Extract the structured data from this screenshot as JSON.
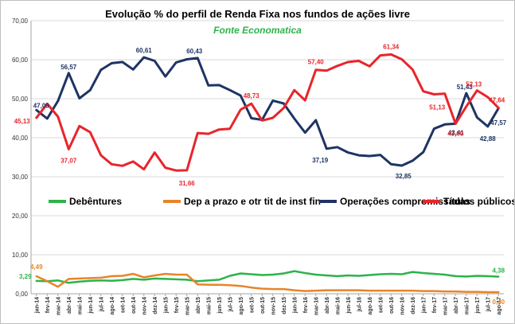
{
  "chart_data": {
    "type": "line",
    "title": "Evolução % do perfil de Renda Fixa nos fundos de ações livre",
    "subtitle": "Fonte Economatica",
    "ylim": [
      0,
      70
    ],
    "yticks": [
      "0,00",
      "10,00",
      "20,00",
      "30,00",
      "40,00",
      "50,00",
      "60,00",
      "70,00"
    ],
    "grid": true,
    "legend_position": "middle",
    "categories": [
      "jan-14",
      "fev-14",
      "mar-14",
      "abr-14",
      "mai-14",
      "jun-14",
      "jul-14",
      "ago-14",
      "set-14",
      "out-14",
      "nov-14",
      "dez-14",
      "jan-15",
      "fev-15",
      "mar-15",
      "abr-15",
      "mai-15",
      "jun-15",
      "jul-15",
      "ago-15",
      "set-15",
      "out-15",
      "nov-15",
      "dez-15",
      "jan-16",
      "fev-16",
      "mar-16",
      "abr-16",
      "mai-16",
      "jun-16",
      "jul-16",
      "ago-16",
      "set-16",
      "out-16",
      "nov-16",
      "dez-16",
      "jan-17",
      "fev-17",
      "mar-17",
      "abr-17",
      "mai-17",
      "jun-17",
      "jul-17",
      "ago-17"
    ],
    "series": [
      {
        "name": "Debêntures",
        "color": "#2db34a",
        "values": [
          3.29,
          3.2,
          3.4,
          2.8,
          3.1,
          3.3,
          3.4,
          3.3,
          3.5,
          3.8,
          3.6,
          3.9,
          3.8,
          3.7,
          3.6,
          3.2,
          3.4,
          3.6,
          4.6,
          5.2,
          5.0,
          4.8,
          4.9,
          5.2,
          5.8,
          5.3,
          4.9,
          4.7,
          4.5,
          4.7,
          4.6,
          4.8,
          5.0,
          5.1,
          5.0,
          5.6,
          5.3,
          5.1,
          4.9,
          4.5,
          4.4,
          4.6,
          4.5,
          4.38
        ]
      },
      {
        "name": "Dep a prazo e otr tit de inst fin",
        "color": "#e8842a",
        "values": [
          4.49,
          3.2,
          1.8,
          3.8,
          3.9,
          4.0,
          4.1,
          4.5,
          4.6,
          5.1,
          4.2,
          4.7,
          5.1,
          4.9,
          4.9,
          2.4,
          2.3,
          2.3,
          2.2,
          2.0,
          1.6,
          1.3,
          1.2,
          1.2,
          0.9,
          0.7,
          0.8,
          0.9,
          0.9,
          0.9,
          0.9,
          0.8,
          0.8,
          0.8,
          0.8,
          0.8,
          0.7,
          0.7,
          0.6,
          0.6,
          0.5,
          0.5,
          0.4,
          0.4
        ]
      },
      {
        "name": "Operações compromissadas",
        "color": "#1f3464",
        "values": [
          47.09,
          44.9,
          49.4,
          56.57,
          50.1,
          52.2,
          57.4,
          59.1,
          59.4,
          57.5,
          60.61,
          59.7,
          55.7,
          59.3,
          60.1,
          60.43,
          53.4,
          53.5,
          52.2,
          50.8,
          45.0,
          44.6,
          49.5,
          48.8,
          44.9,
          41.3,
          44.5,
          37.19,
          37.6,
          36.2,
          35.5,
          35.3,
          35.6,
          33.2,
          32.85,
          34.1,
          36.3,
          42.3,
          43.41,
          43.6,
          51.43,
          45.2,
          42.88,
          47.57
        ]
      },
      {
        "name": "Títulos públicos",
        "color": "#e8252b",
        "values": [
          45.13,
          48.7,
          45.4,
          37.07,
          43.0,
          41.4,
          35.5,
          33.2,
          32.8,
          33.9,
          31.9,
          36.2,
          32.3,
          31.6,
          31.66,
          41.2,
          41.0,
          42.1,
          42.3,
          47.2,
          48.73,
          44.4,
          45.1,
          47.6,
          52.2,
          49.6,
          57.4,
          57.2,
          58.4,
          59.4,
          59.7,
          58.3,
          61.1,
          61.34,
          60.1,
          57.5,
          51.9,
          51.13,
          51.3,
          43.6,
          48.0,
          52.13,
          50.4,
          47.64
        ]
      }
    ],
    "data_labels": [
      {
        "series": 0,
        "index": 0,
        "text": "3,29"
      },
      {
        "series": 0,
        "index": 43,
        "text": "4,38"
      },
      {
        "series": 1,
        "index": 0,
        "text": "4,49"
      },
      {
        "series": 1,
        "index": 43,
        "text": "0,40"
      },
      {
        "series": 2,
        "index": 0,
        "text": "47,09"
      },
      {
        "series": 2,
        "index": 3,
        "text": "56,57"
      },
      {
        "series": 2,
        "index": 10,
        "text": "60,61"
      },
      {
        "series": 2,
        "index": 15,
        "text": "60,43"
      },
      {
        "series": 2,
        "index": 27,
        "text": "37,19"
      },
      {
        "series": 2,
        "index": 34,
        "text": "32,85"
      },
      {
        "series": 2,
        "index": 38,
        "text": "43,41"
      },
      {
        "series": 2,
        "index": 40,
        "text": "51,43"
      },
      {
        "series": 2,
        "index": 42,
        "text": "42,88"
      },
      {
        "series": 2,
        "index": 43,
        "text": "47,57"
      },
      {
        "series": 3,
        "index": 0,
        "text": "45,13"
      },
      {
        "series": 3,
        "index": 3,
        "text": "37,07"
      },
      {
        "series": 3,
        "index": 14,
        "text": "31,66"
      },
      {
        "series": 3,
        "index": 20,
        "text": "48,73"
      },
      {
        "series": 3,
        "index": 26,
        "text": "57,40"
      },
      {
        "series": 3,
        "index": 33,
        "text": "61,34"
      },
      {
        "series": 3,
        "index": 37,
        "text": "51,13"
      },
      {
        "series": 3,
        "index": 39,
        "text": "43,60"
      },
      {
        "series": 3,
        "index": 41,
        "text": "52,13"
      },
      {
        "series": 3,
        "index": 43,
        "text": "47,64"
      }
    ]
  }
}
